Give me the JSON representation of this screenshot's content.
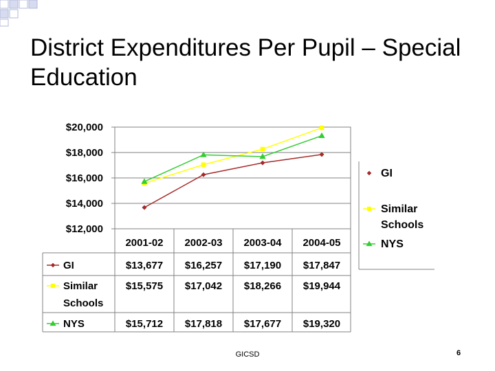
{
  "slide": {
    "title": "District Expenditures Per Pupil – Special Education",
    "footer": "GICSD",
    "page_number": "6"
  },
  "chart_data": {
    "type": "line",
    "title": "",
    "xlabel": "",
    "ylabel": "",
    "categories": [
      "2001-02",
      "2002-03",
      "2003-04",
      "2004-05"
    ],
    "ylim": [
      12000,
      20000
    ],
    "yticks": [
      12000,
      14000,
      16000,
      18000,
      20000
    ],
    "ytick_labels": [
      "$12,000",
      "$14,000",
      "$16,000",
      "$18,000",
      "$20,000"
    ],
    "grid": true,
    "legend_position": "right",
    "data_table": true,
    "series": [
      {
        "name": "GI",
        "legend_lines": [
          "GI"
        ],
        "table_lines": [
          "GI"
        ],
        "color": "#a52a2a",
        "marker": "diamond",
        "values": [
          13677,
          16257,
          17190,
          17847
        ],
        "labels": [
          "$13,677",
          "$16,257",
          "$17,190",
          "$17,847"
        ]
      },
      {
        "name": "Similar Schools",
        "legend_lines": [
          "Similar",
          "Schools"
        ],
        "table_lines": [
          "Similar",
          "Schools"
        ],
        "color": "#ffff00",
        "marker": "square",
        "values": [
          15575,
          17042,
          18266,
          19944
        ],
        "labels": [
          "$15,575",
          "$17,042",
          "$18,266",
          "$19,944"
        ]
      },
      {
        "name": "NYS",
        "legend_lines": [
          "NYS"
        ],
        "table_lines": [
          "NYS"
        ],
        "color": "#33cc33",
        "marker": "triangle",
        "values": [
          15712,
          17818,
          17677,
          19320
        ],
        "labels": [
          "$15,712",
          "$17,818",
          "$17,677",
          "$19,320"
        ]
      }
    ]
  }
}
